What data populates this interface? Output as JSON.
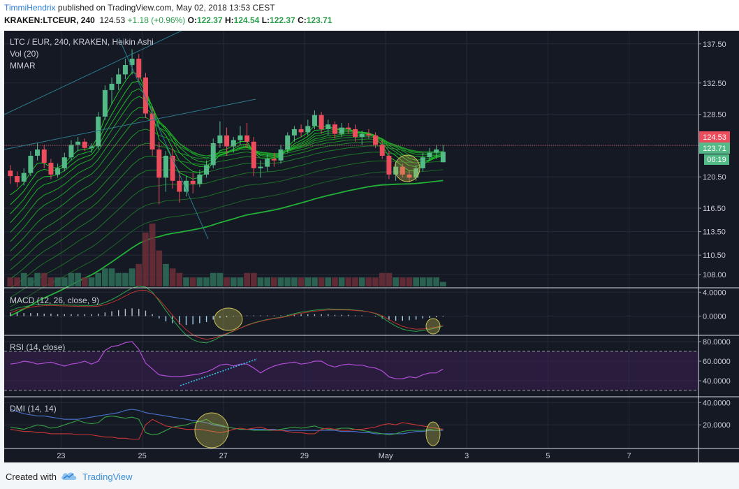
{
  "header": {
    "username": "TimmiHendrix",
    "published_text": "published on TradingView.com, May 02, 2018 13:53 CEST",
    "symbol": "KRAKEN:LTCEUR, 240",
    "last": "124.53",
    "change": "+1.18 (+0.96%)",
    "o_label": "O:",
    "o_value": "122.37",
    "h_label": "H:",
    "h_value": "124.54",
    "l_label": "L:",
    "l_value": "122.37",
    "c_label": "C:",
    "c_value": "123.71"
  },
  "footer": {
    "created_with": "Created with",
    "brand": "TradingView"
  },
  "chart_data": {
    "type": "candlestick",
    "colors": {
      "background": "#151924",
      "up": "#53b987",
      "down": "#eb4d5c",
      "grid": "#262b36"
    },
    "price_pane": {
      "legend": [
        "LTC / EUR, 240, KRAKEN, Heikin Ashi",
        "Vol (20)",
        "MMAR"
      ],
      "y_ticks": [
        "137.50",
        "132.50",
        "128.50",
        "124.50",
        "120.50",
        "116.50",
        "113.50",
        "110.50",
        "108.00"
      ],
      "ylim": [
        106.5,
        139
      ],
      "last_price_label": "124.53",
      "close_label": "123.71",
      "countdown_label": "06:19",
      "candles": [
        {
          "o": 121.3,
          "h": 122.0,
          "l": 119.6,
          "c": 120.6
        },
        {
          "o": 120.6,
          "h": 121.2,
          "l": 119.2,
          "c": 119.8
        },
        {
          "o": 119.9,
          "h": 121.6,
          "l": 119.4,
          "c": 121.0
        },
        {
          "o": 121.0,
          "h": 123.8,
          "l": 120.6,
          "c": 123.2
        },
        {
          "o": 123.2,
          "h": 124.8,
          "l": 122.6,
          "c": 124.0
        },
        {
          "o": 124.0,
          "h": 124.6,
          "l": 121.6,
          "c": 122.3
        },
        {
          "o": 122.3,
          "h": 122.8,
          "l": 120.2,
          "c": 120.8
        },
        {
          "o": 120.8,
          "h": 122.2,
          "l": 120.4,
          "c": 121.6
        },
        {
          "o": 121.6,
          "h": 123.6,
          "l": 121.2,
          "c": 123.0
        },
        {
          "o": 123.0,
          "h": 125.2,
          "l": 122.6,
          "c": 124.6
        },
        {
          "o": 124.6,
          "h": 125.6,
          "l": 123.8,
          "c": 125.0
        },
        {
          "o": 125.0,
          "h": 125.4,
          "l": 123.8,
          "c": 124.2
        },
        {
          "o": 124.2,
          "h": 124.8,
          "l": 123.6,
          "c": 124.4
        },
        {
          "o": 124.4,
          "h": 128.8,
          "l": 124.0,
          "c": 128.2
        },
        {
          "o": 128.2,
          "h": 132.2,
          "l": 127.8,
          "c": 131.6
        },
        {
          "o": 131.6,
          "h": 133.2,
          "l": 129.8,
          "c": 132.4
        },
        {
          "o": 132.4,
          "h": 134.4,
          "l": 131.6,
          "c": 133.6
        },
        {
          "o": 133.6,
          "h": 135.6,
          "l": 133.0,
          "c": 134.8
        },
        {
          "o": 134.8,
          "h": 136.8,
          "l": 133.6,
          "c": 135.6
        },
        {
          "o": 135.6,
          "h": 136.2,
          "l": 132.8,
          "c": 133.2
        },
        {
          "o": 133.2,
          "h": 133.8,
          "l": 128.0,
          "c": 128.6
        },
        {
          "o": 128.6,
          "h": 129.4,
          "l": 123.2,
          "c": 124.0
        },
        {
          "o": 124.0,
          "h": 125.0,
          "l": 117.0,
          "c": 120.4
        },
        {
          "o": 120.4,
          "h": 123.8,
          "l": 118.6,
          "c": 123.2
        },
        {
          "o": 123.2,
          "h": 124.2,
          "l": 119.0,
          "c": 120.0
        },
        {
          "o": 120.0,
          "h": 121.2,
          "l": 117.2,
          "c": 118.6
        },
        {
          "o": 118.6,
          "h": 120.6,
          "l": 118.0,
          "c": 120.0
        },
        {
          "o": 120.0,
          "h": 121.0,
          "l": 118.4,
          "c": 119.6
        },
        {
          "o": 119.6,
          "h": 121.4,
          "l": 119.2,
          "c": 120.8
        },
        {
          "o": 120.8,
          "h": 122.6,
          "l": 120.4,
          "c": 122.0
        },
        {
          "o": 122.0,
          "h": 125.4,
          "l": 121.6,
          "c": 124.8
        },
        {
          "o": 124.8,
          "h": 127.6,
          "l": 124.2,
          "c": 125.8
        },
        {
          "o": 125.8,
          "h": 126.8,
          "l": 123.2,
          "c": 124.4
        },
        {
          "o": 124.4,
          "h": 125.6,
          "l": 123.6,
          "c": 125.2
        },
        {
          "o": 125.2,
          "h": 127.0,
          "l": 124.6,
          "c": 125.8
        },
        {
          "o": 125.8,
          "h": 127.4,
          "l": 124.2,
          "c": 125.0
        },
        {
          "o": 125.0,
          "h": 125.6,
          "l": 120.6,
          "c": 121.6
        },
        {
          "o": 121.6,
          "h": 122.6,
          "l": 120.4,
          "c": 121.8
        },
        {
          "o": 121.8,
          "h": 123.4,
          "l": 121.2,
          "c": 122.8
        },
        {
          "o": 122.8,
          "h": 123.6,
          "l": 121.8,
          "c": 122.6
        },
        {
          "o": 122.6,
          "h": 124.6,
          "l": 122.2,
          "c": 124.0
        },
        {
          "o": 124.0,
          "h": 126.2,
          "l": 123.6,
          "c": 125.8
        },
        {
          "o": 125.8,
          "h": 127.0,
          "l": 125.0,
          "c": 126.6
        },
        {
          "o": 126.6,
          "h": 127.2,
          "l": 125.6,
          "c": 126.2
        },
        {
          "o": 126.2,
          "h": 127.8,
          "l": 125.8,
          "c": 127.0
        },
        {
          "o": 127.0,
          "h": 129.0,
          "l": 126.6,
          "c": 128.4
        },
        {
          "o": 128.4,
          "h": 128.8,
          "l": 126.0,
          "c": 126.6
        },
        {
          "o": 126.6,
          "h": 127.8,
          "l": 125.8,
          "c": 127.2
        },
        {
          "o": 127.2,
          "h": 127.6,
          "l": 125.4,
          "c": 126.0
        },
        {
          "o": 126.0,
          "h": 127.4,
          "l": 125.6,
          "c": 126.8
        },
        {
          "o": 126.8,
          "h": 127.4,
          "l": 126.0,
          "c": 126.6
        },
        {
          "o": 126.6,
          "h": 127.2,
          "l": 125.0,
          "c": 125.6
        },
        {
          "o": 125.6,
          "h": 126.4,
          "l": 124.6,
          "c": 126.0
        },
        {
          "o": 126.0,
          "h": 126.6,
          "l": 125.4,
          "c": 125.8
        },
        {
          "o": 125.8,
          "h": 126.2,
          "l": 124.2,
          "c": 124.6
        },
        {
          "o": 124.6,
          "h": 125.2,
          "l": 122.8,
          "c": 123.2
        },
        {
          "o": 123.2,
          "h": 123.8,
          "l": 120.2,
          "c": 120.8
        },
        {
          "o": 120.8,
          "h": 122.4,
          "l": 120.0,
          "c": 121.8
        },
        {
          "o": 121.8,
          "h": 122.2,
          "l": 120.4,
          "c": 120.8
        },
        {
          "o": 120.8,
          "h": 121.4,
          "l": 119.8,
          "c": 120.4
        },
        {
          "o": 120.4,
          "h": 122.0,
          "l": 120.0,
          "c": 121.6
        },
        {
          "o": 121.6,
          "h": 123.6,
          "l": 121.2,
          "c": 123.0
        },
        {
          "o": 123.0,
          "h": 124.2,
          "l": 122.6,
          "c": 123.6
        },
        {
          "o": 123.6,
          "h": 124.6,
          "l": 122.8,
          "c": 124.0
        },
        {
          "o": 122.37,
          "h": 124.54,
          "l": 122.37,
          "c": 123.71
        }
      ],
      "volume": [
        2,
        2,
        3,
        2,
        3,
        3,
        2,
        2,
        2,
        3,
        3,
        2,
        2,
        3,
        4,
        4,
        3,
        3,
        4,
        5,
        12,
        14,
        8,
        5,
        4,
        3,
        2,
        2,
        2,
        2,
        3,
        3,
        2,
        2,
        2,
        3,
        3,
        2,
        2,
        2,
        2,
        2,
        2,
        2,
        2,
        2,
        2,
        2,
        2,
        2,
        2,
        2,
        2,
        2,
        2,
        3,
        3,
        2,
        2,
        2,
        2,
        2,
        2,
        2,
        1
      ]
    },
    "macd_pane": {
      "legend": "MACD (12, 26, close, 9)",
      "y_ticks": [
        "4.0000",
        "0.0000"
      ],
      "ylim": [
        -3,
        4.5
      ],
      "histogram": [
        0.6,
        0.6,
        0.5,
        0.5,
        0.5,
        0.4,
        0.4,
        0.3,
        0.3,
        0.3,
        0.3,
        0.3,
        0.3,
        0.4,
        0.6,
        0.8,
        1.0,
        1.2,
        1.3,
        1.2,
        0.9,
        0.3,
        -0.4,
        -0.9,
        -1.2,
        -1.4,
        -1.5,
        -1.4,
        -1.2,
        -1.0,
        -0.6,
        -0.3,
        -0.2,
        -0.1,
        0.0,
        0.1,
        0.1,
        0.1,
        0.1,
        0.1,
        0.1,
        0.2,
        0.3,
        0.3,
        0.3,
        0.3,
        0.3,
        0.3,
        0.2,
        0.2,
        0.2,
        0.1,
        0.1,
        0.0,
        -0.1,
        -0.4,
        -0.7,
        -0.8,
        -0.8,
        -0.7,
        -0.6,
        -0.4,
        -0.3,
        -0.2,
        -0.1
      ]
    },
    "rsi_pane": {
      "legend": "RSI (14, close)",
      "y_ticks": [
        "80.0000",
        "60.0000",
        "40.0000"
      ],
      "ylim": [
        25,
        85
      ],
      "values": [
        57,
        58,
        60,
        59,
        57,
        58,
        59,
        57,
        55,
        57,
        58,
        60,
        57,
        60,
        71,
        75,
        76,
        79,
        80,
        72,
        58,
        52,
        46,
        45,
        44,
        44,
        45,
        46,
        47,
        49,
        52,
        56,
        57,
        55,
        57,
        57,
        53,
        48,
        52,
        55,
        57,
        58,
        59,
        57,
        58,
        60,
        60,
        56,
        54,
        56,
        57,
        56,
        56,
        54,
        53,
        50,
        44,
        42,
        42,
        44,
        43,
        46,
        48,
        48,
        52
      ]
    },
    "dmi_pane": {
      "legend": "DMI (14, 14)",
      "y_ticks": [
        "40.0000",
        "20.0000"
      ],
      "ylim": [
        0,
        44
      ],
      "series": [
        {
          "color": "#4a75d1",
          "values": [
            34,
            32,
            30,
            29,
            28,
            28,
            27,
            26,
            25,
            25,
            25,
            26,
            27,
            28,
            29,
            30,
            31,
            33,
            34,
            33,
            31,
            30,
            29,
            28,
            27,
            26,
            25,
            24,
            23,
            22,
            20,
            19,
            18,
            17,
            16,
            16,
            16,
            16,
            16,
            16,
            15,
            15,
            15,
            15,
            15,
            15,
            15,
            15,
            15,
            14,
            14,
            14,
            13,
            13,
            12,
            12,
            12,
            12,
            12,
            13,
            14,
            14,
            15,
            15,
            15
          ]
        },
        {
          "color": "#36a247",
          "values": [
            18,
            17,
            16,
            18,
            20,
            19,
            17,
            18,
            20,
            22,
            24,
            22,
            21,
            22,
            27,
            28,
            27,
            26,
            27,
            25,
            13,
            11,
            12,
            15,
            18,
            19,
            20,
            22,
            23,
            25,
            21,
            20,
            18,
            17,
            16,
            16,
            15,
            15,
            15,
            15,
            16,
            17,
            18,
            17,
            18,
            19,
            17,
            16,
            16,
            17,
            17,
            16,
            15,
            14,
            13,
            12,
            11,
            12,
            14,
            15,
            15,
            15,
            16,
            15,
            16
          ]
        },
        {
          "color": "#c83535",
          "values": [
            16,
            15,
            14,
            14,
            13,
            13,
            12,
            12,
            12,
            12,
            11,
            11,
            11,
            10,
            9,
            9,
            8,
            8,
            7,
            7,
            20,
            25,
            22,
            19,
            18,
            17,
            16,
            16,
            16,
            15,
            14,
            13,
            14,
            16,
            17,
            16,
            17,
            18,
            16,
            15,
            15,
            14,
            13,
            13,
            12,
            12,
            16,
            17,
            16,
            15,
            15,
            16,
            16,
            17,
            18,
            20,
            21,
            20,
            22,
            21,
            20,
            19,
            18,
            17,
            16
          ]
        }
      ]
    },
    "x_ticks": [
      {
        "label": "23",
        "idx": 7.5
      },
      {
        "label": "25",
        "idx": 19.5
      },
      {
        "label": "27",
        "idx": 31.5
      },
      {
        "label": "29",
        "idx": 43.5
      },
      {
        "label": "May",
        "idx": 55.5
      },
      {
        "label": "3",
        "idx": 67.5
      },
      {
        "label": "5",
        "idx": 79.5
      },
      {
        "label": "7",
        "idx": 91.5
      }
    ]
  }
}
